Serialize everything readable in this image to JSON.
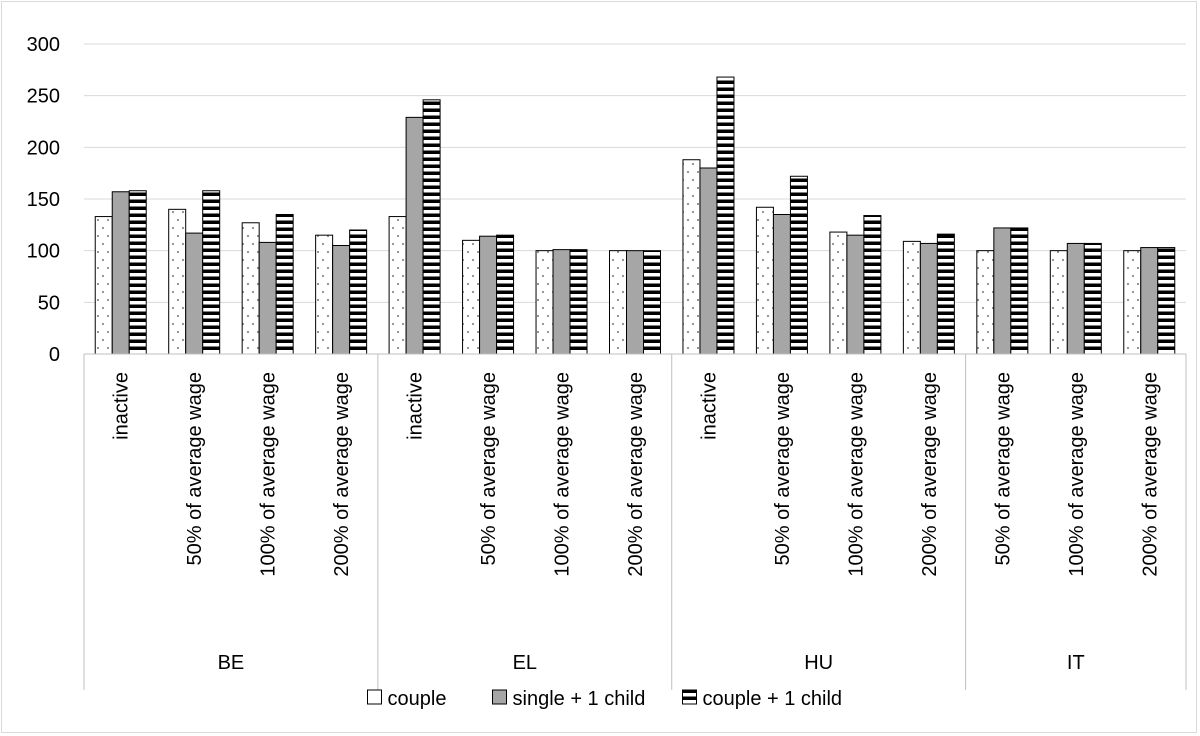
{
  "chart_data": {
    "type": "bar",
    "title": "",
    "xlabel": "",
    "ylabel": "",
    "ylim": [
      0,
      300
    ],
    "yticks": [
      0,
      50,
      100,
      150,
      200,
      250,
      300
    ],
    "grid": true,
    "legend_position": "bottom",
    "groups": [
      {
        "name": "BE",
        "categories": [
          "inactive",
          "50% of average wage",
          "100% of average wage",
          "200% of average wage"
        ]
      },
      {
        "name": "EL",
        "categories": [
          "inactive",
          "50% of average wage",
          "100% of average wage",
          "200% of average wage"
        ]
      },
      {
        "name": "HU",
        "categories": [
          "inactive",
          "50% of average wage",
          "100% of average wage",
          "200% of average wage"
        ]
      },
      {
        "name": "IT",
        "categories": [
          "50% of average wage",
          "100% of average wage",
          "200% of average wage"
        ]
      }
    ],
    "series": [
      {
        "name": "couple",
        "pattern": "dots",
        "values": [
          133,
          140,
          127,
          115,
          133,
          110,
          100,
          100,
          188,
          142,
          118,
          109,
          100,
          100,
          100
        ]
      },
      {
        "name": "single + 1 child",
        "pattern": "solid",
        "values": [
          157,
          117,
          108,
          105,
          229,
          114,
          101,
          100,
          180,
          135,
          115,
          107,
          122,
          107,
          103
        ]
      },
      {
        "name": "couple + 1 child",
        "pattern": "stripes",
        "values": [
          158,
          158,
          135,
          120,
          246,
          115,
          101,
          100,
          268,
          172,
          134,
          116,
          122,
          107,
          103
        ]
      }
    ],
    "colors": {
      "couple": "#ffffff",
      "single": "#a6a6a6",
      "stripe_dark": "#000000",
      "stripe_light": "#ffffff",
      "grid": "#d9d9d9",
      "dots": "#8c8c8c"
    }
  }
}
